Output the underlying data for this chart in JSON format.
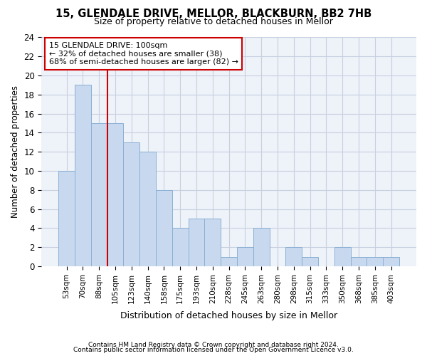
{
  "title1": "15, GLENDALE DRIVE, MELLOR, BLACKBURN, BB2 7HB",
  "title2": "Size of property relative to detached houses in Mellor",
  "xlabel": "Distribution of detached houses by size in Mellor",
  "ylabel": "Number of detached properties",
  "categories": [
    "53sqm",
    "70sqm",
    "88sqm",
    "105sqm",
    "123sqm",
    "140sqm",
    "158sqm",
    "175sqm",
    "193sqm",
    "210sqm",
    "228sqm",
    "245sqm",
    "263sqm",
    "280sqm",
    "298sqm",
    "315sqm",
    "333sqm",
    "350sqm",
    "368sqm",
    "385sqm",
    "403sqm"
  ],
  "values": [
    10,
    19,
    15,
    15,
    13,
    12,
    8,
    4,
    5,
    5,
    1,
    2,
    4,
    0,
    2,
    1,
    0,
    2,
    1,
    1,
    1
  ],
  "bar_color": "#c8d9ef",
  "bar_edge_color": "#8ab0d4",
  "vline_x": 3,
  "vline_color": "#cc0000",
  "annotation_line1": "15 GLENDALE DRIVE: 100sqm",
  "annotation_line2": "← 32% of detached houses are smaller (38)",
  "annotation_line3": "68% of semi-detached houses are larger (82) →",
  "annotation_box_color": "#ffffff",
  "annotation_box_edge_color": "#cc0000",
  "ylim": [
    0,
    24
  ],
  "yticks": [
    0,
    2,
    4,
    6,
    8,
    10,
    12,
    14,
    16,
    18,
    20,
    22,
    24
  ],
  "footnote1": "Contains HM Land Registry data © Crown copyright and database right 2024.",
  "footnote2": "Contains public sector information licensed under the Open Government Licence v3.0.",
  "bg_color": "#eef2f9"
}
